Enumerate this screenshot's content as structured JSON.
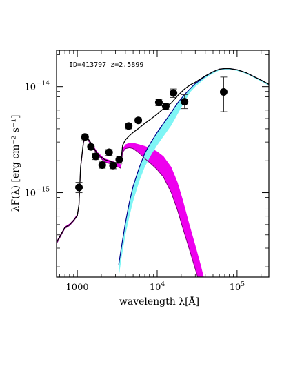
{
  "chart_data": {
    "type": "scatter",
    "x_scale": "log",
    "y_scale": "log",
    "xlim": [
      550,
      250000
    ],
    "ylim": [
      1.6e-16,
      2.2e-14
    ],
    "xlabel": "wavelength λ[Å]",
    "ylabel": "λF(λ) [erg cm⁻² s⁻¹]",
    "x_ticks": [
      {
        "value": 1000,
        "base": "1000",
        "exp": ""
      },
      {
        "value": 10000,
        "base": "10",
        "exp": "4"
      },
      {
        "value": 100000,
        "base": "10",
        "exp": "5"
      }
    ],
    "y_ticks": [
      {
        "value": 1e-15,
        "base": "10",
        "exp": "−15"
      },
      {
        "value": 1e-14,
        "base": "10",
        "exp": "−14"
      }
    ],
    "annotation": "ID=413797 z=2.5899",
    "colors": {
      "total_model": "#000000",
      "agn_line": "#00008b",
      "agn_band": "#7ff5f5",
      "stellar_line": "#7a007a",
      "stellar_band": "#ee00ee",
      "points": "#000000"
    },
    "photometry": [
      {
        "x": 1050,
        "y": 1.12e-15,
        "yerr_lo": 1e-15,
        "yerr_hi": 1.25e-15
      },
      {
        "x": 1250,
        "y": 3.35e-15,
        "yerr_lo": 3.15e-15,
        "yerr_hi": 3.55e-15
      },
      {
        "x": 1480,
        "y": 2.7e-15,
        "yerr_lo": 2.55e-15,
        "yerr_hi": 2.85e-15
      },
      {
        "x": 1700,
        "y": 2.2e-15,
        "yerr_lo": 2.05e-15,
        "yerr_hi": 2.35e-15
      },
      {
        "x": 2050,
        "y": 1.82e-15,
        "yerr_lo": 1.7e-15,
        "yerr_hi": 1.95e-15
      },
      {
        "x": 2500,
        "y": 2.4e-15,
        "yerr_lo": 2.25e-15,
        "yerr_hi": 2.55e-15
      },
      {
        "x": 2800,
        "y": 1.8e-15,
        "yerr_lo": 1.68e-15,
        "yerr_hi": 1.93e-15
      },
      {
        "x": 3350,
        "y": 2.05e-15,
        "yerr_lo": 1.9e-15,
        "yerr_hi": 2.2e-15
      },
      {
        "x": 4400,
        "y": 4.25e-15,
        "yerr_lo": 4e-15,
        "yerr_hi": 4.5e-15
      },
      {
        "x": 5800,
        "y": 4.8e-15,
        "yerr_lo": 4.55e-15,
        "yerr_hi": 5.05e-15
      },
      {
        "x": 10500,
        "y": 7.1e-15,
        "yerr_lo": 6.6e-15,
        "yerr_hi": 7.6e-15
      },
      {
        "x": 12800,
        "y": 6.5e-15,
        "yerr_lo": 6.1e-15,
        "yerr_hi": 6.9e-15
      },
      {
        "x": 16000,
        "y": 8.7e-15,
        "yerr_lo": 7.9e-15,
        "yerr_hi": 9.5e-15
      },
      {
        "x": 22000,
        "y": 7.2e-15,
        "yerr_lo": 6.2e-15,
        "yerr_hi": 8.4e-15
      },
      {
        "x": 68000,
        "y": 8.9e-15,
        "yerr_lo": 5.8e-15,
        "yerr_hi": 1.23e-14
      }
    ],
    "stellar_model": {
      "x": [
        550,
        700,
        800,
        900,
        1000,
        1050,
        1100,
        1200,
        1300,
        1500,
        1800,
        2200,
        2700,
        3200,
        3500,
        3700,
        4000,
        4500,
        5000,
        6000,
        7000,
        8500,
        10000,
        12000,
        15000,
        18000,
        21000,
        25000,
        30000,
        35000,
        40000
      ],
      "lo": [
        3.3e-16,
        4.6e-16,
        4.9e-16,
        5.4e-16,
        6e-16,
        7.5e-16,
        1.7e-15,
        3e-15,
        3.3e-15,
        2.8e-15,
        2.25e-15,
        1.95e-15,
        1.85e-15,
        1.75e-15,
        1.7e-15,
        2.4e-15,
        2.6e-15,
        2.65e-15,
        2.6e-15,
        2.35e-15,
        2.1e-15,
        1.85e-15,
        1.65e-15,
        1.4e-15,
        1e-15,
        6.8e-16,
        4.6e-16,
        3e-16,
        1.9e-16,
        1.3e-16,
        9e-17
      ],
      "hi": [
        3.5e-16,
        4.8e-16,
        5.1e-16,
        5.6e-16,
        6.3e-16,
        7.9e-16,
        1.8e-15,
        3.15e-15,
        3.45e-15,
        2.95e-15,
        2.4e-15,
        2.1e-15,
        2e-15,
        1.9e-15,
        1.85e-15,
        2.6e-15,
        2.85e-15,
        2.95e-15,
        2.95e-15,
        2.85e-15,
        2.75e-15,
        2.6e-15,
        2.45e-15,
        2.2e-15,
        1.75e-15,
        1.25e-15,
        8.5e-16,
        5.2e-16,
        3.2e-16,
        2.1e-16,
        1.4e-16
      ]
    },
    "agn_model": {
      "x": [
        3300,
        3600,
        4000,
        4500,
        5000,
        6000,
        7000,
        8500,
        10000,
        12000,
        15000,
        18000,
        22000,
        26000,
        30000,
        40000,
        50000,
        60000,
        70000,
        80000,
        100000,
        130000,
        160000,
        200000,
        250000
      ],
      "lo": [
        1.6e-16,
        2.5e-16,
        4e-16,
        6e-16,
        8.3e-16,
        1.3e-15,
        1.75e-15,
        2.3e-15,
        2.8e-15,
        3.4e-15,
        4.3e-15,
        5.5e-15,
        7.2e-15,
        8.9e-15,
        1e-14,
        1.2e-14,
        1.33e-14,
        1.42e-14,
        1.45e-14,
        1.45e-14,
        1.41e-14,
        1.32e-14,
        1.22e-14,
        1.12e-14,
        1.02e-14
      ],
      "hi": [
        2.1e-16,
        3.2e-16,
        5.2e-16,
        8.2e-16,
        1.15e-15,
        1.75e-15,
        2.35e-15,
        3.05e-15,
        3.7e-15,
        4.5e-15,
        5.7e-15,
        7e-15,
        8.4e-15,
        9.6e-15,
        1.07e-14,
        1.25e-14,
        1.38e-14,
        1.46e-14,
        1.48e-14,
        1.48e-14,
        1.44e-14,
        1.35e-14,
        1.25e-14,
        1.15e-14,
        1.05e-14
      ]
    },
    "total_model": {
      "x": [
        550,
        700,
        800,
        900,
        1000,
        1050,
        1100,
        1200,
        1300,
        1500,
        1800,
        2200,
        2700,
        3200,
        3500,
        3700,
        4000,
        4500,
        5000,
        6000,
        7000,
        8500,
        10000,
        12000,
        15000,
        18000,
        22000,
        26000,
        30000,
        40000,
        50000,
        60000,
        70000,
        80000,
        100000,
        130000,
        160000,
        200000,
        250000
      ],
      "y": [
        3.4e-16,
        4.7e-16,
        5e-16,
        5.5e-16,
        6.1e-16,
        7.7e-16,
        1.75e-15,
        3.1e-15,
        3.4e-15,
        2.9e-15,
        2.3e-15,
        2.05e-15,
        1.95e-15,
        1.9e-15,
        1.9e-15,
        2.8e-15,
        3.15e-15,
        3.45e-15,
        3.7e-15,
        4.1e-15,
        4.5e-15,
        5e-15,
        5.5e-15,
        6.2e-15,
        7e-15,
        8.2e-15,
        9.5e-15,
        1.04e-14,
        1.1e-14,
        1.26e-14,
        1.38e-14,
        1.46e-14,
        1.48e-14,
        1.48e-14,
        1.44e-14,
        1.35e-14,
        1.25e-14,
        1.15e-14,
        1.05e-14
      ]
    }
  }
}
